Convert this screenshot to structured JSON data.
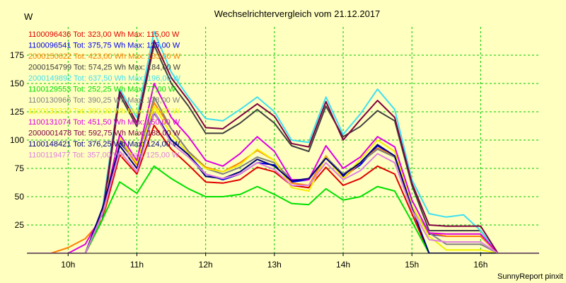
{
  "chart_data": {
    "type": "line",
    "title": "Wechselrichtervergleich vom 21.12.2017",
    "ylabel": "W",
    "xlabel": "",
    "footer": "SunnyReport pinxit",
    "ylim": [
      0,
      200
    ],
    "xlim": [
      9.4,
      16.85
    ],
    "y_ticks": [
      25,
      50,
      75,
      100,
      125,
      150,
      175
    ],
    "x_ticks": [
      {
        "v": 10,
        "label": "10h"
      },
      {
        "v": 11,
        "label": "11h"
      },
      {
        "v": 12,
        "label": "12h"
      },
      {
        "v": 13,
        "label": "13h"
      },
      {
        "v": 14,
        "label": "14h"
      },
      {
        "v": 15,
        "label": "15h"
      },
      {
        "v": 16,
        "label": "16h"
      }
    ],
    "grid": true,
    "legend_position": "top-left",
    "x": [
      9.417,
      9.5,
      9.75,
      10.0,
      10.25,
      10.5,
      10.75,
      11.0,
      11.25,
      11.5,
      11.75,
      12.0,
      12.25,
      12.5,
      12.75,
      13.0,
      13.25,
      13.5,
      13.75,
      14.0,
      14.25,
      14.5,
      14.75,
      15.0,
      15.25,
      15.5,
      15.75,
      16.0,
      16.25,
      16.5,
      16.85
    ],
    "series": [
      {
        "name": "1100096436",
        "text": "1100096436 Tot: 323,00 Wh Max: 115,00 W",
        "color": "#e00000",
        "values": [
          0,
          0,
          0,
          0,
          0,
          30,
          87,
          70,
          113,
          92,
          78,
          63,
          62,
          65,
          76,
          72,
          60,
          58,
          76,
          60,
          66,
          77,
          70,
          35,
          0,
          0,
          0,
          0,
          0,
          0,
          0
        ]
      },
      {
        "name": "1100096541",
        "text": "1100096541 Tot: 375,75 Wh Max: 125,00 W",
        "color": "#0000ee",
        "values": [
          0,
          0,
          0,
          0,
          0,
          40,
          98,
          80,
          125,
          100,
          87,
          70,
          65,
          70,
          80,
          78,
          63,
          65,
          85,
          68,
          78,
          95,
          86,
          40,
          17,
          15,
          15,
          15,
          0,
          0,
          0
        ]
      },
      {
        "name": "2000150622",
        "text": "2000150622 Tot: 423,00 Wh Max: 133,00 W",
        "color": "#ff8000",
        "values": [
          0,
          0,
          0,
          5,
          13,
          30,
          100,
          78,
          133,
          110,
          90,
          76,
          72,
          80,
          91,
          82,
          62,
          60,
          86,
          66,
          80,
          93,
          86,
          40,
          18,
          15,
          15,
          15,
          0,
          0,
          0
        ]
      },
      {
        "name": "2000154799",
        "text": "2000154799 Tot: 574,25 Wh Max: 184,00 W",
        "color": "#404040",
        "values": [
          0,
          0,
          0,
          0,
          0,
          30,
          140,
          112,
          184,
          150,
          130,
          106,
          106,
          115,
          127,
          115,
          95,
          90,
          130,
          103,
          112,
          126,
          117,
          60,
          20,
          20,
          20,
          20,
          0,
          0,
          0
        ]
      },
      {
        "name": "2000149892",
        "text": "2000149892 Tot: 637,50 Wh Max: 196,00 W",
        "color": "#40e0f0",
        "values": [
          0,
          0,
          0,
          0,
          0,
          40,
          145,
          120,
          196,
          160,
          138,
          119,
          117,
          127,
          138,
          125,
          100,
          98,
          138,
          105,
          123,
          145,
          127,
          65,
          35,
          32,
          34,
          20,
          0,
          0,
          0
        ]
      },
      {
        "name": "1100129553",
        "text": "1100129553 Tot: 252,25 Wh Max: 77,00 W",
        "color": "#00e000",
        "values": [
          0,
          0,
          0,
          0,
          0,
          30,
          63,
          53,
          77,
          66,
          57,
          50,
          50,
          52,
          59,
          52,
          44,
          43,
          57,
          47,
          50,
          59,
          55,
          28,
          0,
          0,
          0,
          0,
          0,
          0,
          0
        ]
      },
      {
        "name": "1100130966",
        "text": "1100130966 Tot: 390,25 Wh Max: 138,00 W",
        "color": "#808080",
        "values": [
          0,
          0,
          0,
          0,
          0,
          40,
          100,
          80,
          138,
          110,
          90,
          75,
          70,
          76,
          85,
          80,
          65,
          65,
          85,
          70,
          80,
          92,
          85,
          40,
          18,
          8,
          8,
          8,
          0,
          0,
          0
        ]
      },
      {
        "name": "1100131320",
        "text": "1100131320 Tot: 390,00 Wh Max: 130,00 W",
        "color": "#f0f000",
        "values": [
          0,
          0,
          0,
          0,
          0,
          40,
          102,
          80,
          130,
          105,
          88,
          75,
          72,
          78,
          92,
          82,
          58,
          55,
          85,
          66,
          83,
          100,
          90,
          42,
          15,
          3,
          3,
          3,
          0,
          0,
          0
        ]
      },
      {
        "name": "1100131074",
        "text": "1100131074 Tot: 451,50 Wh Max: 150,00 W",
        "color": "#e000e0",
        "values": [
          0,
          0,
          0,
          0,
          8,
          35,
          105,
          82,
          150,
          120,
          103,
          82,
          77,
          88,
          103,
          90,
          65,
          65,
          95,
          75,
          85,
          103,
          94,
          47,
          18,
          17,
          17,
          17,
          0,
          0,
          0
        ]
      },
      {
        "name": "2000001478",
        "text": "2000001478 Tot: 592,75 Wh Max: 188,00 W",
        "color": "#800040",
        "values": [
          0,
          0,
          0,
          0,
          0,
          35,
          143,
          115,
          188,
          155,
          135,
          111,
          110,
          121,
          132,
          121,
          97,
          94,
          134,
          100,
          118,
          135,
          120,
          62,
          25,
          24,
          24,
          24,
          0,
          0,
          0
        ]
      },
      {
        "name": "1100148421",
        "text": "1100148421 Tot: 376,25 Wh Max: 124,00 W",
        "color": "#000080",
        "values": [
          0,
          0,
          0,
          0,
          0,
          40,
          95,
          75,
          124,
          100,
          87,
          68,
          66,
          72,
          83,
          77,
          64,
          66,
          84,
          69,
          80,
          96,
          86,
          40,
          0,
          0,
          0,
          0,
          0,
          0,
          0
        ]
      },
      {
        "name": "1100119477",
        "text": "1100119477 Tot: 357,00 Wh Max: 125,00 W",
        "color": "#e080e0",
        "values": [
          0,
          0,
          0,
          0,
          0,
          35,
          90,
          72,
          125,
          97,
          85,
          70,
          66,
          70,
          80,
          74,
          60,
          60,
          80,
          65,
          73,
          88,
          80,
          38,
          12,
          10,
          10,
          10,
          0,
          0,
          0
        ]
      }
    ]
  }
}
